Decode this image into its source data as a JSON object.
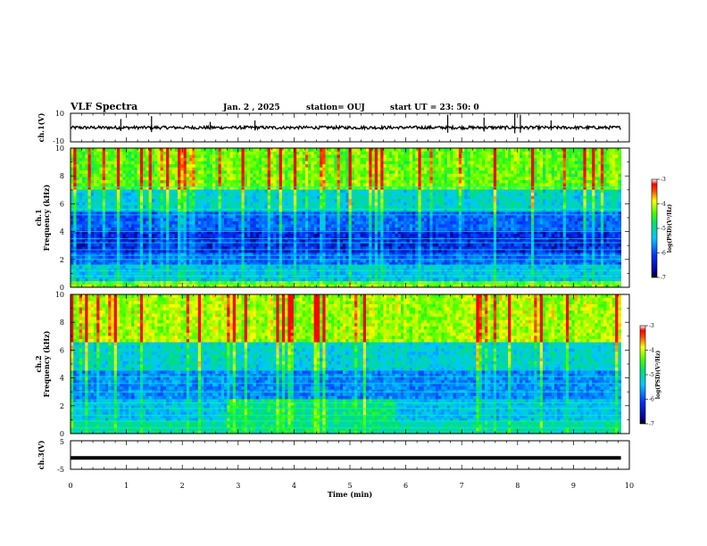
{
  "header": {
    "title": "VLF Spectra",
    "date": "Jan. 2  , 2025",
    "station": "station= OUJ",
    "start": "start  UT  =    23: 50: 0"
  },
  "chart_data": [
    {
      "type": "line",
      "ylabel": "ch.1(V)",
      "xlim": [
        0,
        10
      ],
      "ylim": [
        -10,
        10
      ],
      "yticks": [
        "10",
        "-10"
      ],
      "baseline": 0,
      "spikes_min": [
        0.9,
        1.45,
        2.5,
        3.3,
        6.75,
        7.4,
        7.95,
        8.05,
        8.6
      ],
      "spike_heights": [
        6,
        8,
        4,
        5,
        9,
        7,
        10,
        9,
        5
      ]
    },
    {
      "type": "heatmap",
      "ylabel": "ch.1\nFrequency (kHz)",
      "xlim": [
        0,
        10
      ],
      "data_end_min": 9.85,
      "ylim_khz": [
        0,
        10
      ],
      "yticks": [
        "0",
        "2",
        "4",
        "6",
        "8",
        "10"
      ],
      "colorbar": {
        "label": "log(PSD)(V²/Hz)",
        "ticks": [
          "-3",
          "-4",
          "-5",
          "-6",
          "-7"
        ],
        "range": [
          -7,
          -3
        ]
      },
      "band_levels_khz": [
        [
          0,
          0.5,
          -4.4
        ],
        [
          0.5,
          1.5,
          -5.6
        ],
        [
          1.5,
          2.5,
          -6.2
        ],
        [
          2.5,
          4.0,
          -6.6
        ],
        [
          4.0,
          5.5,
          -6.2
        ],
        [
          5.5,
          7.0,
          -5.4
        ],
        [
          7.0,
          10.0,
          -4.4
        ]
      ],
      "narrowband_lines_khz": [
        0.3,
        0.8,
        1.2,
        1.6,
        2.0,
        2.3,
        2.7,
        3.2,
        3.5,
        4.0,
        5.2,
        5.6,
        7.2
      ]
    },
    {
      "type": "heatmap",
      "ylabel": "ch.2\nFrequency (kHz)",
      "xlim": [
        0,
        10
      ],
      "data_end_min": 9.85,
      "ylim_khz": [
        0,
        10
      ],
      "yticks": [
        "0",
        "2",
        "4",
        "6",
        "8",
        "10"
      ],
      "colorbar": {
        "label": "log(PSD)(V²/Hz)",
        "ticks": [
          "-3",
          "-4",
          "-5",
          "-6",
          "-7"
        ],
        "range": [
          -7,
          -3
        ]
      },
      "band_levels_khz": [
        [
          0,
          1.0,
          -5.2
        ],
        [
          1.0,
          2.5,
          -5.6
        ],
        [
          2.5,
          4.5,
          -6.0
        ],
        [
          4.5,
          6.5,
          -5.4
        ],
        [
          6.5,
          10.0,
          -4.2
        ]
      ],
      "enhancement": {
        "start_min": 2.8,
        "end_min": 5.8,
        "fmax_khz": 2.5,
        "level": -5.0
      },
      "narrowband_lines_khz": [
        0.4,
        0.9,
        1.3,
        1.8,
        2.2,
        3.0,
        3.6,
        4.1
      ]
    },
    {
      "type": "line",
      "ylabel": "ch.3(V)",
      "xlabel": "Time  (min)",
      "xlim": [
        0,
        10
      ],
      "ylim": [
        -5,
        5
      ],
      "yticks": [
        "5",
        "-5"
      ],
      "xticks": [
        "0",
        "1",
        "2",
        "3",
        "4",
        "5",
        "6",
        "7",
        "8",
        "9",
        "10"
      ],
      "constant_value": -1.0,
      "data_end_min": 9.85
    }
  ]
}
